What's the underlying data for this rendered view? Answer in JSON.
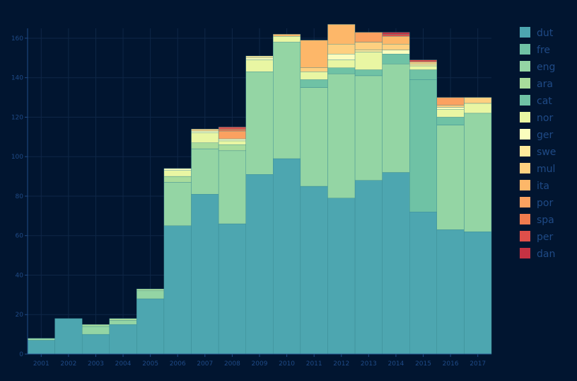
{
  "chart_data": {
    "type": "bar",
    "stacked": true,
    "title": "",
    "xlabel": "",
    "ylabel": "",
    "ylim": [
      0,
      165
    ],
    "yticks": [
      0,
      20,
      40,
      60,
      80,
      100,
      120,
      140,
      160
    ],
    "grid": true,
    "legend_position": "right",
    "categories": [
      "2001",
      "2002",
      "2003",
      "2004",
      "2005",
      "2006",
      "2007",
      "2008",
      "2009",
      "2010",
      "2011",
      "2012",
      "2013",
      "2014",
      "2015",
      "2016",
      "2017"
    ],
    "series": [
      {
        "name": "dut",
        "color": "#4da6b0",
        "values": [
          7,
          18,
          10,
          15,
          28,
          65,
          81,
          66,
          91,
          99,
          85,
          79,
          88,
          92,
          72,
          63,
          62
        ]
      },
      {
        "name": "fre",
        "color": "#6fc2a5",
        "values": [
          0,
          0,
          0,
          0,
          0,
          0,
          0,
          0,
          0,
          0,
          0,
          0,
          0,
          0,
          67,
          0,
          0
        ]
      },
      {
        "name": "eng",
        "color": "#94d5a4",
        "values": [
          1,
          0,
          4,
          2,
          4,
          22,
          23,
          37,
          52,
          59,
          50,
          63,
          53,
          55,
          0,
          53,
          60
        ]
      },
      {
        "name": "ara",
        "color": "#a9dc9c",
        "values": [
          0,
          0,
          1,
          1,
          1,
          3,
          3,
          3,
          0,
          0,
          0,
          0,
          0,
          0,
          0,
          0,
          0
        ]
      },
      {
        "name": "cat",
        "color": "#6fc2a5",
        "values": [
          0,
          0,
          0,
          0,
          0,
          0,
          0,
          0,
          0,
          0,
          4,
          3,
          3,
          5,
          5,
          4,
          0
        ]
      },
      {
        "name": "nor",
        "color": "#e9f6a3",
        "values": [
          0,
          0,
          0,
          0,
          0,
          3,
          5,
          2,
          6,
          3,
          4,
          4,
          9,
          0,
          2,
          4,
          5
        ]
      },
      {
        "name": "ger",
        "color": "#fbfdbd",
        "values": [
          0,
          0,
          0,
          0,
          0,
          1,
          1,
          1,
          1,
          0,
          0,
          3,
          0,
          2,
          0,
          1,
          0
        ]
      },
      {
        "name": "swe",
        "color": "#fee99b",
        "values": [
          0,
          0,
          0,
          0,
          0,
          0,
          0,
          0,
          1,
          0,
          0,
          0,
          1,
          0,
          1,
          0,
          0
        ]
      },
      {
        "name": "mul",
        "color": "#fed080",
        "values": [
          0,
          0,
          0,
          0,
          0,
          0,
          1,
          0,
          0,
          0,
          2,
          5,
          4,
          3,
          1,
          1,
          3
        ]
      },
      {
        "name": "ita",
        "color": "#fdb769",
        "values": [
          0,
          0,
          0,
          0,
          0,
          0,
          0,
          0,
          0,
          1,
          14,
          10,
          0,
          4,
          0,
          0,
          0
        ]
      },
      {
        "name": "por",
        "color": "#fba160",
        "values": [
          0,
          0,
          0,
          0,
          0,
          0,
          0,
          4,
          0,
          0,
          0,
          0,
          5,
          0,
          0,
          4,
          0
        ]
      },
      {
        "name": "spa",
        "color": "#f07b4e",
        "values": [
          0,
          0,
          0,
          0,
          0,
          0,
          0,
          1,
          0,
          0,
          0,
          0,
          0,
          0,
          0,
          0,
          0
        ]
      },
      {
        "name": "per",
        "color": "#de4f4a",
        "values": [
          0,
          0,
          0,
          0,
          0,
          0,
          0,
          1,
          0,
          0,
          0,
          0,
          0,
          1,
          1,
          0,
          0
        ]
      },
      {
        "name": "dan",
        "color": "#c53243",
        "values": [
          0,
          0,
          0,
          0,
          0,
          0,
          0,
          0,
          0,
          0,
          0,
          0,
          0,
          1,
          0,
          0,
          0
        ]
      }
    ]
  }
}
